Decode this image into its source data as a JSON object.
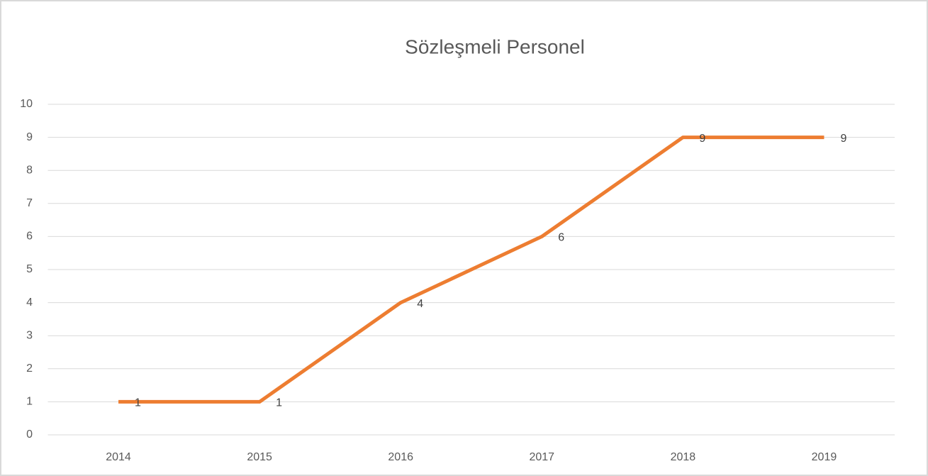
{
  "chart_data": {
    "type": "line",
    "title": "Sözleşmeli Personel",
    "categories": [
      "2014",
      "2015",
      "2016",
      "2017",
      "2018",
      "2019"
    ],
    "values": [
      1,
      1,
      4,
      6,
      9,
      9
    ],
    "color": "#ed7d31",
    "ylim": [
      0,
      10
    ],
    "yticks": [
      0,
      1,
      2,
      3,
      4,
      5,
      6,
      7,
      8,
      9,
      10
    ],
    "grid": true
  }
}
